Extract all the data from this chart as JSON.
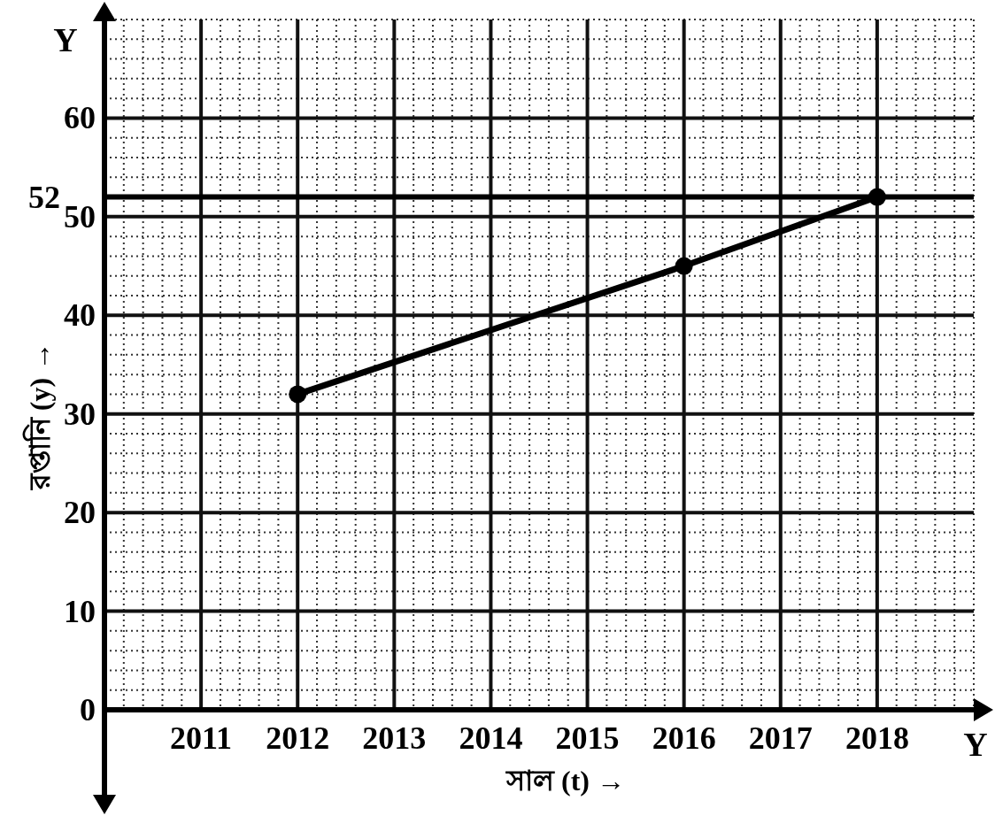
{
  "chart_data": {
    "type": "line",
    "xlabel": "সাল (t) →",
    "ylabel": "রপ্তানি (y) →",
    "annotations": [
      "Y",
      "Y"
    ],
    "x": [
      2012,
      2016,
      2018
    ],
    "series": [
      {
        "color": "#000000",
        "values": [
          32,
          45,
          52
        ]
      }
    ],
    "xlim": [
      2010,
      2019
    ],
    "ylim": [
      0,
      70
    ],
    "xticks": [
      2011,
      2012,
      2013,
      2014,
      2015,
      2016,
      2017,
      2018
    ],
    "yticks": [
      0,
      10,
      20,
      30,
      40,
      50,
      60
    ],
    "ref_lines": [
      {
        "axis": "y",
        "value": 52,
        "label": "52"
      }
    ],
    "grid": true,
    "marker": "circle",
    "line_style": "solid"
  }
}
